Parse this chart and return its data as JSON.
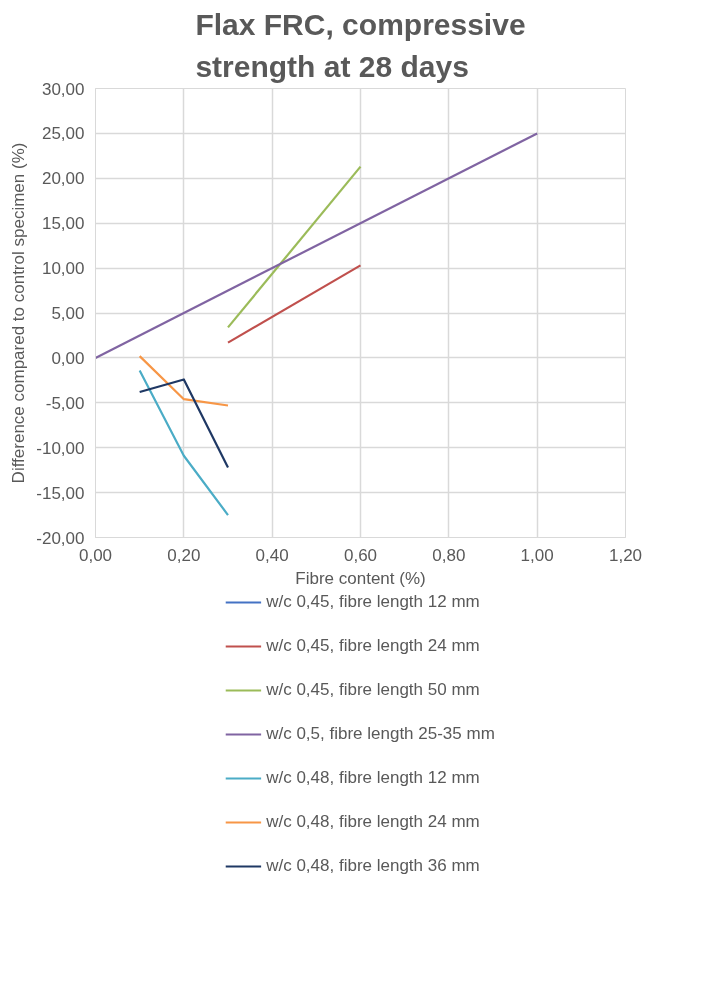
{
  "chart_data": {
    "type": "line",
    "title": "Flax FRC, compressive strength at 28 days",
    "xlabel": "Fibre content (%)",
    "ylabel": "Difference compared to control specimen (%)",
    "xlim": [
      0,
      1.2
    ],
    "ylim": [
      -20,
      30
    ],
    "xticks": [
      {
        "value": 0,
        "label": "0,00"
      },
      {
        "value": 0.2,
        "label": "0,20"
      },
      {
        "value": 0.4,
        "label": "0,40"
      },
      {
        "value": 0.6,
        "label": "0,60"
      },
      {
        "value": 0.8,
        "label": "0,80"
      },
      {
        "value": 1,
        "label": "1,00"
      },
      {
        "value": 1.2,
        "label": "1,20"
      }
    ],
    "yticks": [
      {
        "value": -20,
        "label": "-20,00"
      },
      {
        "value": -15,
        "label": "-15,00"
      },
      {
        "value": -10,
        "label": "-10,00"
      },
      {
        "value": -5,
        "label": "-5,00"
      },
      {
        "value": 0,
        "label": "0,00"
      },
      {
        "value": 5,
        "label": "5,00"
      },
      {
        "value": 10,
        "label": "10,00"
      },
      {
        "value": 15,
        "label": "15,00"
      },
      {
        "value": 20,
        "label": "20,00"
      },
      {
        "value": 25,
        "label": "25,00"
      },
      {
        "value": 30,
        "label": "30,00"
      }
    ],
    "grid": true,
    "legend": "bottom",
    "marker": "none",
    "line_style": "solid",
    "series": [
      {
        "name": "w/c 0,45, fibre length 12 mm",
        "color": "#4472c4",
        "values": [
          null
        ]
      },
      {
        "name": "w/c 0,45, fibre length 24 mm",
        "color": "#c0504d",
        "x": [
          0.3,
          0.6
        ],
        "values": [
          1.7,
          10.3
        ]
      },
      {
        "name": "w/c 0,45, fibre length 50 mm",
        "color": "#9bbb59",
        "x": [
          0.3,
          0.6
        ],
        "values": [
          3.4,
          21.3
        ]
      },
      {
        "name": "w/c 0,5, fibre length 25-35 mm",
        "color": "#8064a2",
        "x": [
          0,
          1
        ],
        "values": [
          0,
          25
        ]
      },
      {
        "name": "w/c 0,48, fibre length 12 mm",
        "color": "#4bacc6",
        "x": [
          0.1,
          0.2,
          0.3
        ],
        "values": [
          -1.4,
          -10.9,
          -17.5
        ]
      },
      {
        "name": "w/c 0,48, fibre length 24 mm",
        "color": "#f79646",
        "x": [
          0.1,
          0.2,
          0.3
        ],
        "values": [
          0.2,
          -4.6,
          -5.3
        ]
      },
      {
        "name": "w/c 0,48, fibre length 36 mm",
        "color": "#1f3864",
        "x": [
          0.1,
          0.2,
          0.3
        ],
        "values": [
          -3.8,
          -2.4,
          -12.2
        ]
      }
    ]
  }
}
